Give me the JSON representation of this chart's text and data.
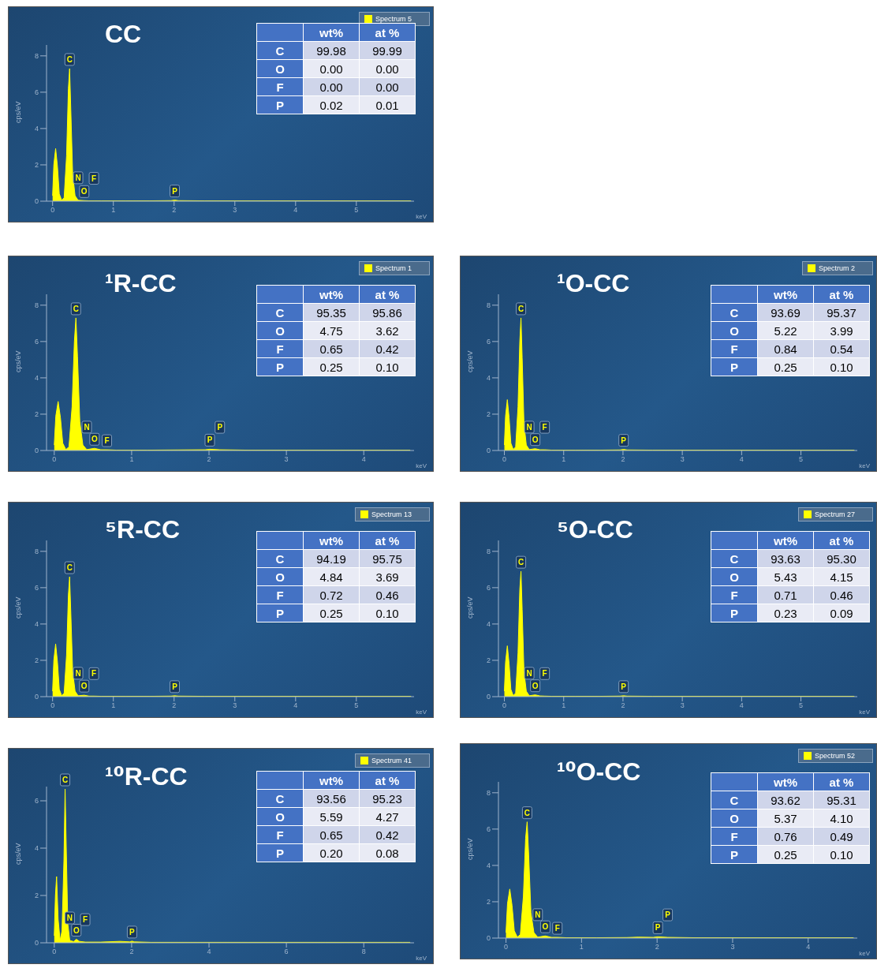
{
  "chart_data": [
    {
      "type": "area",
      "title": "CC",
      "xlabel": "keV",
      "ylabel": "cps/eV",
      "legend": "top right",
      "xlim": [
        -0.1,
        5.95
      ],
      "xticks": [
        0,
        1,
        2,
        3,
        4,
        5
      ],
      "ylim": [
        0,
        8.6
      ],
      "yticks": [
        0,
        2,
        4,
        6,
        8
      ],
      "x": [
        0,
        0.02,
        0.05,
        0.08,
        0.11,
        0.15,
        0.19,
        0.23,
        0.26,
        0.28,
        0.3,
        0.33,
        0.37,
        0.42,
        0.52,
        0.6,
        0.68,
        0.8,
        1.2,
        1.6,
        1.95,
        2.01,
        2.07,
        2.5,
        3,
        4,
        5,
        5.9
      ],
      "series": [
        {
          "name": "Spectrum 5",
          "color": "#ffff00",
          "values": [
            0.3,
            2.0,
            2.9,
            1.9,
            0.4,
            0.05,
            0.2,
            2.5,
            6.2,
            7.3,
            5.0,
            1.5,
            0.3,
            0.05,
            0.03,
            0.02,
            0.02,
            0.02,
            0.02,
            0.02,
            0.03,
            0.06,
            0.03,
            0.02,
            0.02,
            0.02,
            0.02,
            0.02
          ]
        }
      ],
      "annotations": [
        {
          "text": "C",
          "x": 0.28,
          "y": 7.3
        },
        {
          "text": "N",
          "x": 0.42,
          "y": 0.05
        },
        {
          "text": "O",
          "x": 0.52,
          "y": 0.03
        },
        {
          "text": "F",
          "x": 0.68,
          "y": 0.02
        },
        {
          "text": "P",
          "x": 2.01,
          "y": 0.06
        },
        "wt%",
        "at %",
        "C",
        "99.98",
        "99.99",
        "O",
        "0.00",
        "0.00",
        "F",
        "0.00",
        "0.00",
        "P",
        "0.02",
        "0.01"
      ]
    },
    {
      "type": "area",
      "title": "¹R-CC",
      "xlabel": "keV",
      "ylabel": "cps/eV",
      "legend": "top right",
      "xlim": [
        -0.1,
        4.65
      ],
      "xticks": [
        0,
        1,
        2,
        3,
        4
      ],
      "ylim": [
        0,
        8.6
      ],
      "yticks": [
        0,
        2,
        4,
        6,
        8
      ],
      "x": [
        0,
        0.02,
        0.05,
        0.08,
        0.11,
        0.15,
        0.19,
        0.23,
        0.26,
        0.28,
        0.3,
        0.33,
        0.37,
        0.42,
        0.52,
        0.6,
        0.68,
        0.8,
        1.2,
        1.6,
        1.95,
        2.01,
        2.14,
        2.5,
        3,
        4,
        4.6
      ],
      "series": [
        {
          "name": "Spectrum 1",
          "color": "#ffff00",
          "values": [
            0.3,
            1.9,
            2.7,
            1.8,
            0.4,
            0.05,
            0.2,
            2.4,
            6.0,
            7.3,
            5.2,
            1.6,
            0.3,
            0.05,
            0.12,
            0.04,
            0.04,
            0.02,
            0.02,
            0.03,
            0.04,
            0.07,
            0.04,
            0.02,
            0.02,
            0.02,
            0.02
          ]
        }
      ],
      "annotations": [
        {
          "text": "C",
          "x": 0.28,
          "y": 7.3
        },
        {
          "text": "N",
          "x": 0.42,
          "y": 0.05
        },
        {
          "text": "O",
          "x": 0.52,
          "y": 0.12
        },
        {
          "text": "F",
          "x": 0.68,
          "y": 0.04
        },
        {
          "text": "P",
          "x": 2.01,
          "y": 0.07
        },
        {
          "text": "P",
          "x": 2.14,
          "y": 0.04
        },
        "wt%",
        "at %",
        "C",
        "95.35",
        "95.86",
        "O",
        "4.75",
        "3.62",
        "F",
        "0.65",
        "0.42",
        "P",
        "0.25",
        "0.10"
      ]
    },
    {
      "type": "area",
      "title": "¹O-CC",
      "xlabel": "keV",
      "ylabel": "cps/eV",
      "legend": "top right",
      "xlim": [
        -0.1,
        5.95
      ],
      "xticks": [
        0,
        1,
        2,
        3,
        4,
        5
      ],
      "ylim": [
        0,
        8.6
      ],
      "yticks": [
        0,
        2,
        4,
        6,
        8
      ],
      "x": [
        0,
        0.02,
        0.05,
        0.08,
        0.11,
        0.15,
        0.19,
        0.23,
        0.26,
        0.28,
        0.3,
        0.33,
        0.37,
        0.42,
        0.52,
        0.6,
        0.68,
        0.8,
        1.2,
        1.6,
        1.95,
        2.01,
        2.07,
        2.5,
        3,
        4,
        5,
        5.9
      ],
      "series": [
        {
          "name": "Spectrum 2",
          "color": "#ffff00",
          "values": [
            0.3,
            1.9,
            2.8,
            1.8,
            0.4,
            0.05,
            0.2,
            2.4,
            6.0,
            7.3,
            5.1,
            1.5,
            0.3,
            0.05,
            0.1,
            0.04,
            0.04,
            0.02,
            0.02,
            0.02,
            0.03,
            0.06,
            0.03,
            0.02,
            0.02,
            0.02,
            0.02,
            0.02
          ]
        }
      ],
      "annotations": [
        {
          "text": "C",
          "x": 0.28,
          "y": 7.3
        },
        {
          "text": "N",
          "x": 0.42,
          "y": 0.05
        },
        {
          "text": "O",
          "x": 0.52,
          "y": 0.1
        },
        {
          "text": "F",
          "x": 0.68,
          "y": 0.04
        },
        {
          "text": "P",
          "x": 2.01,
          "y": 0.06
        },
        "wt%",
        "at %",
        "C",
        "93.69",
        "95.37",
        "O",
        "5.22",
        "3.99",
        "F",
        "0.84",
        "0.54",
        "P",
        "0.25",
        "0.10"
      ]
    },
    {
      "type": "area",
      "title": "⁵R-CC",
      "xlabel": "keV",
      "ylabel": "cps/eV",
      "legend": "top right",
      "xlim": [
        -0.1,
        5.95
      ],
      "xticks": [
        0,
        1,
        2,
        3,
        4,
        5
      ],
      "ylim": [
        0,
        8.6
      ],
      "yticks": [
        0,
        2,
        4,
        6,
        8
      ],
      "x": [
        0,
        0.02,
        0.05,
        0.08,
        0.11,
        0.15,
        0.19,
        0.23,
        0.26,
        0.28,
        0.3,
        0.33,
        0.37,
        0.42,
        0.52,
        0.6,
        0.68,
        0.8,
        1.2,
        1.6,
        1.95,
        2.01,
        2.07,
        2.5,
        3,
        4,
        5,
        5.9
      ],
      "series": [
        {
          "name": "Spectrum 13",
          "color": "#ffff00",
          "values": [
            0.3,
            2.0,
            2.9,
            1.9,
            0.4,
            0.05,
            0.2,
            2.3,
            5.6,
            6.6,
            4.6,
            1.4,
            0.3,
            0.05,
            0.08,
            0.03,
            0.03,
            0.02,
            0.02,
            0.02,
            0.03,
            0.05,
            0.03,
            0.02,
            0.02,
            0.02,
            0.02,
            0.02
          ]
        }
      ],
      "annotations": [
        {
          "text": "C",
          "x": 0.28,
          "y": 6.6
        },
        {
          "text": "N",
          "x": 0.42,
          "y": 0.05
        },
        {
          "text": "O",
          "x": 0.52,
          "y": 0.08
        },
        {
          "text": "F",
          "x": 0.68,
          "y": 0.03
        },
        {
          "text": "P",
          "x": 2.01,
          "y": 0.05
        },
        "wt%",
        "at %",
        "C",
        "94.19",
        "95.75",
        "O",
        "4.84",
        "3.69",
        "F",
        "0.72",
        "0.46",
        "P",
        "0.25",
        "0.10"
      ]
    },
    {
      "type": "area",
      "title": "⁵O-CC",
      "xlabel": "keV",
      "ylabel": "cps/eV",
      "legend": "top right",
      "xlim": [
        -0.1,
        5.95
      ],
      "xticks": [
        0,
        1,
        2,
        3,
        4,
        5
      ],
      "ylim": [
        0,
        8.6
      ],
      "yticks": [
        0,
        2,
        4,
        6,
        8
      ],
      "x": [
        0,
        0.02,
        0.05,
        0.08,
        0.11,
        0.15,
        0.19,
        0.23,
        0.26,
        0.28,
        0.3,
        0.33,
        0.37,
        0.42,
        0.52,
        0.6,
        0.68,
        0.8,
        1.2,
        1.6,
        1.95,
        2.01,
        2.07,
        2.5,
        3,
        4,
        5,
        5.9
      ],
      "series": [
        {
          "name": "Spectrum 27",
          "color": "#ffff00",
          "values": [
            0.3,
            1.9,
            2.8,
            1.8,
            0.4,
            0.05,
            0.2,
            2.4,
            5.9,
            6.9,
            4.8,
            1.4,
            0.3,
            0.05,
            0.1,
            0.04,
            0.03,
            0.02,
            0.02,
            0.02,
            0.03,
            0.05,
            0.03,
            0.02,
            0.02,
            0.02,
            0.02,
            0.02
          ]
        }
      ],
      "annotations": [
        {
          "text": "C",
          "x": 0.28,
          "y": 6.9
        },
        {
          "text": "N",
          "x": 0.42,
          "y": 0.05
        },
        {
          "text": "O",
          "x": 0.52,
          "y": 0.1
        },
        {
          "text": "F",
          "x": 0.68,
          "y": 0.03
        },
        {
          "text": "P",
          "x": 2.01,
          "y": 0.05
        },
        "wt%",
        "at %",
        "C",
        "93.63",
        "95.30",
        "O",
        "5.43",
        "4.15",
        "F",
        "0.71",
        "0.46",
        "P",
        "0.23",
        "0.09"
      ]
    },
    {
      "type": "area",
      "title": "¹⁰R-CC",
      "xlabel": "keV",
      "ylabel": "cps/eV",
      "legend": "top right",
      "xlim": [
        -0.2,
        9.3
      ],
      "xticks": [
        0,
        2,
        4,
        6,
        8
      ],
      "ylim": [
        0,
        6.6
      ],
      "yticks": [
        0,
        2,
        4,
        6
      ],
      "x": [
        0,
        0.03,
        0.06,
        0.1,
        0.15,
        0.2,
        0.25,
        0.28,
        0.31,
        0.35,
        0.4,
        0.5,
        0.57,
        0.65,
        0.8,
        1.2,
        1.7,
        1.95,
        2.01,
        2.07,
        2.5,
        3,
        4,
        5,
        6,
        7,
        8,
        9,
        9.2
      ],
      "series": [
        {
          "name": "Spectrum 41",
          "color": "#ffff00",
          "values": [
            0.3,
            2.0,
            2.8,
            1.0,
            0.1,
            0.5,
            3.5,
            6.5,
            4.0,
            0.8,
            0.1,
            0.05,
            0.15,
            0.06,
            0.03,
            0.03,
            0.06,
            0.04,
            0.07,
            0.04,
            0.02,
            0.02,
            0.02,
            0.02,
            0.02,
            0.02,
            0.02,
            0.02,
            0.02
          ]
        }
      ],
      "annotations": [
        {
          "text": "C",
          "x": 0.28,
          "y": 6.5
        },
        {
          "text": "N",
          "x": 0.4,
          "y": 0.1
        },
        {
          "text": "O",
          "x": 0.57,
          "y": 0.15
        },
        {
          "text": "F",
          "x": 0.8,
          "y": 0.03
        },
        {
          "text": "P",
          "x": 2.01,
          "y": 0.07
        },
        "wt%",
        "at %",
        "C",
        "93.56",
        "95.23",
        "O",
        "5.59",
        "4.27",
        "F",
        "0.65",
        "0.42",
        "P",
        "0.20",
        "0.08"
      ]
    },
    {
      "type": "area",
      "title": "¹⁰O-CC",
      "xlabel": "keV",
      "ylabel": "cps/eV",
      "legend": "top right",
      "xlim": [
        -0.1,
        4.65
      ],
      "xticks": [
        0,
        1,
        2,
        3,
        4
      ],
      "ylim": [
        0,
        8.6
      ],
      "yticks": [
        0,
        2,
        4,
        6,
        8
      ],
      "x": [
        0,
        0.02,
        0.05,
        0.08,
        0.11,
        0.15,
        0.19,
        0.23,
        0.26,
        0.28,
        0.3,
        0.33,
        0.37,
        0.42,
        0.52,
        0.6,
        0.68,
        0.8,
        1.2,
        1.6,
        1.75,
        1.95,
        2.01,
        2.14,
        2.5,
        3,
        4,
        4.6
      ],
      "series": [
        {
          "name": "Spectrum 52",
          "color": "#ffff00",
          "values": [
            0.3,
            1.9,
            2.7,
            1.8,
            0.4,
            0.05,
            0.2,
            2.3,
            5.5,
            6.4,
            4.6,
            1.4,
            0.3,
            0.05,
            0.12,
            0.04,
            0.04,
            0.02,
            0.02,
            0.03,
            0.05,
            0.04,
            0.07,
            0.04,
            0.02,
            0.02,
            0.02,
            0.02
          ]
        }
      ],
      "annotations": [
        {
          "text": "C",
          "x": 0.28,
          "y": 6.4
        },
        {
          "text": "N",
          "x": 0.42,
          "y": 0.05
        },
        {
          "text": "O",
          "x": 0.52,
          "y": 0.12
        },
        {
          "text": "F",
          "x": 0.68,
          "y": 0.04
        },
        {
          "text": "P",
          "x": 2.01,
          "y": 0.07
        },
        {
          "text": "P",
          "x": 2.14,
          "y": 0.04
        },
        "wt%",
        "at %",
        "C",
        "93.62",
        "95.31",
        "O",
        "5.37",
        "4.10",
        "F",
        "0.76",
        "0.49",
        "P",
        "0.25",
        "0.10"
      ]
    }
  ]
}
